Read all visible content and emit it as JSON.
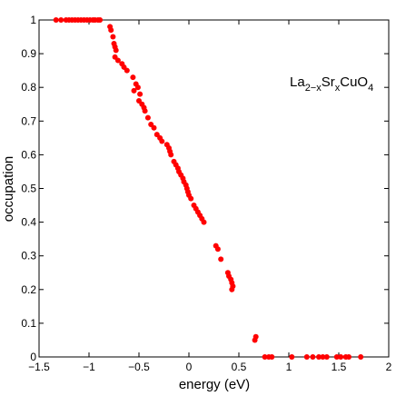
{
  "chart_data": {
    "type": "scatter",
    "title": "",
    "xlabel": "energy (eV)",
    "ylabel": "occupation",
    "xlim": [
      -1.5,
      2
    ],
    "ylim": [
      0,
      1
    ],
    "xticks": [
      -1.5,
      -1,
      -0.5,
      0,
      0.5,
      1,
      1.5,
      2
    ],
    "xtick_labels": [
      "−1.5",
      "−1",
      "−0.5",
      "0",
      "0.5",
      "1",
      "1.5",
      "2"
    ],
    "yticks": [
      0,
      0.1,
      0.2,
      0.3,
      0.4,
      0.5,
      0.6,
      0.7,
      0.8,
      0.9,
      1
    ],
    "ytick_labels": [
      "0",
      "0.1",
      "0.2",
      "0.3",
      "0.4",
      "0.5",
      "0.6",
      "0.7",
      "0.8",
      "0.9",
      "1"
    ],
    "grid": false,
    "marker_color": "#ff0000",
    "annotation": {
      "base": "La",
      "sub1": "2−x",
      "mid": "Sr",
      "sub2": "x",
      "mid2": "CuO",
      "sub3": "4"
    },
    "series": [
      {
        "points": [
          [
            -1.33,
            1.0
          ],
          [
            -1.28,
            1.0
          ],
          [
            -1.23,
            1.0
          ],
          [
            -1.2,
            1.0
          ],
          [
            -1.17,
            1.0
          ],
          [
            -1.14,
            1.0
          ],
          [
            -1.11,
            1.0
          ],
          [
            -1.08,
            1.0
          ],
          [
            -1.05,
            1.0
          ],
          [
            -1.02,
            1.0
          ],
          [
            -0.99,
            1.0
          ],
          [
            -0.96,
            1.0
          ],
          [
            -0.94,
            1.0
          ],
          [
            -0.91,
            1.0
          ],
          [
            -0.89,
            1.0
          ],
          [
            -0.79,
            0.98
          ],
          [
            -0.78,
            0.97
          ],
          [
            -0.76,
            0.95
          ],
          [
            -0.75,
            0.93
          ],
          [
            -0.74,
            0.92
          ],
          [
            -0.73,
            0.91
          ],
          [
            -0.74,
            0.89
          ],
          [
            -0.71,
            0.88
          ],
          [
            -0.67,
            0.87
          ],
          [
            -0.65,
            0.86
          ],
          [
            -0.62,
            0.85
          ],
          [
            -0.56,
            0.83
          ],
          [
            -0.53,
            0.81
          ],
          [
            -0.51,
            0.8
          ],
          [
            -0.55,
            0.79
          ],
          [
            -0.49,
            0.78
          ],
          [
            -0.5,
            0.76
          ],
          [
            -0.47,
            0.75
          ],
          [
            -0.45,
            0.74
          ],
          [
            -0.44,
            0.73
          ],
          [
            -0.41,
            0.71
          ],
          [
            -0.38,
            0.69
          ],
          [
            -0.35,
            0.68
          ],
          [
            -0.32,
            0.66
          ],
          [
            -0.29,
            0.65
          ],
          [
            -0.27,
            0.64
          ],
          [
            -0.22,
            0.63
          ],
          [
            -0.2,
            0.62
          ],
          [
            -0.19,
            0.61
          ],
          [
            -0.18,
            0.6
          ],
          [
            -0.15,
            0.58
          ],
          [
            -0.13,
            0.57
          ],
          [
            -0.11,
            0.56
          ],
          [
            -0.1,
            0.55
          ],
          [
            -0.08,
            0.54
          ],
          [
            -0.06,
            0.53
          ],
          [
            -0.05,
            0.52
          ],
          [
            -0.03,
            0.51
          ],
          [
            -0.02,
            0.5
          ],
          [
            -0.01,
            0.49
          ],
          [
            0.0,
            0.48
          ],
          [
            0.02,
            0.47
          ],
          [
            0.05,
            0.45
          ],
          [
            0.07,
            0.44
          ],
          [
            0.09,
            0.43
          ],
          [
            0.11,
            0.42
          ],
          [
            0.13,
            0.41
          ],
          [
            0.15,
            0.4
          ],
          [
            0.27,
            0.33
          ],
          [
            0.29,
            0.32
          ],
          [
            0.32,
            0.29
          ],
          [
            0.39,
            0.25
          ],
          [
            0.4,
            0.24
          ],
          [
            0.42,
            0.23
          ],
          [
            0.43,
            0.22
          ],
          [
            0.44,
            0.21
          ],
          [
            0.43,
            0.2
          ],
          [
            0.67,
            0.06
          ],
          [
            0.66,
            0.05
          ],
          [
            0.76,
            0.0
          ],
          [
            0.8,
            0.0
          ],
          [
            0.83,
            0.0
          ],
          [
            1.03,
            0.0
          ],
          [
            1.18,
            0.0
          ],
          [
            1.24,
            0.0
          ],
          [
            1.3,
            0.0
          ],
          [
            1.34,
            0.0
          ],
          [
            1.38,
            0.0
          ],
          [
            1.48,
            0.0
          ],
          [
            1.52,
            0.0
          ],
          [
            1.57,
            0.0
          ],
          [
            1.6,
            0.0
          ],
          [
            1.72,
            0.0
          ]
        ]
      }
    ]
  }
}
